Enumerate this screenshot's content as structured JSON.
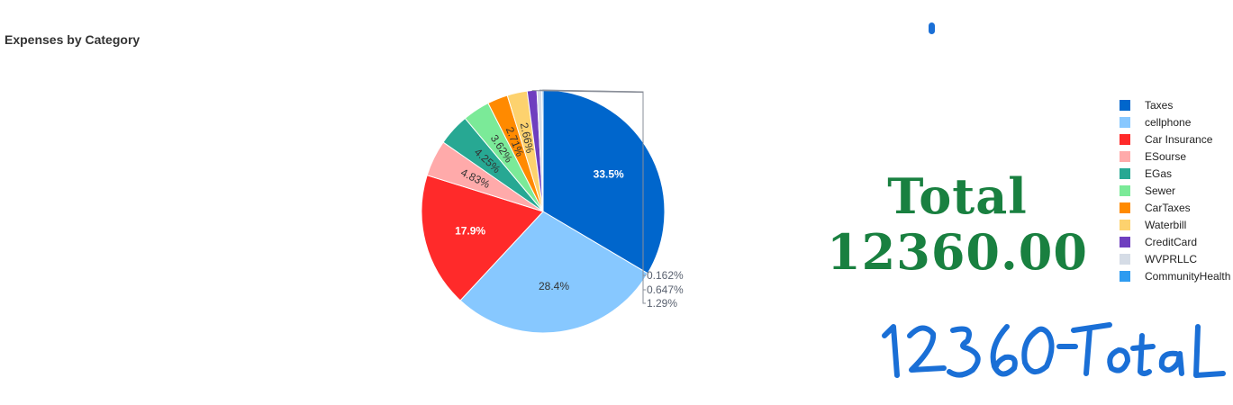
{
  "chart_data": {
    "type": "pie",
    "title": "Expenses by Category",
    "legend_position": "right",
    "slices": [
      {
        "label": "Taxes",
        "value": 33.5,
        "display": "33.5%",
        "color": "#0066cc"
      },
      {
        "label": "cellphone",
        "value": 28.4,
        "display": "28.4%",
        "color": "#87c8ff"
      },
      {
        "label": "Car Insurance",
        "value": 17.9,
        "display": "17.9%",
        "color": "#ff2a2a"
      },
      {
        "label": "ESourse",
        "value": 4.83,
        "display": "4.83%",
        "color": "#ffaaaa"
      },
      {
        "label": "EGas",
        "value": 4.25,
        "display": "4.25%",
        "color": "#27a893"
      },
      {
        "label": "Sewer",
        "value": 3.62,
        "display": "3.62%",
        "color": "#7bea98"
      },
      {
        "label": "CarTaxes",
        "value": 2.71,
        "display": "2.71%",
        "color": "#ff8a00"
      },
      {
        "label": "Waterbill",
        "value": 2.66,
        "display": "2.66%",
        "color": "#fdd26e"
      },
      {
        "label": "CreditCard",
        "value": 1.29,
        "display": "1.29%",
        "color": "#6f3fbf"
      },
      {
        "label": "WVPRLLC",
        "value": 0.647,
        "display": "0.647%",
        "color": "#d5dce6"
      },
      {
        "label": "CommunityHealth",
        "value": 0.162,
        "display": "0.162%",
        "color": "#2e9bf0"
      }
    ]
  },
  "total": {
    "line1": "Total",
    "line2": "12360.00"
  },
  "handwritten_note": "12360-Total"
}
